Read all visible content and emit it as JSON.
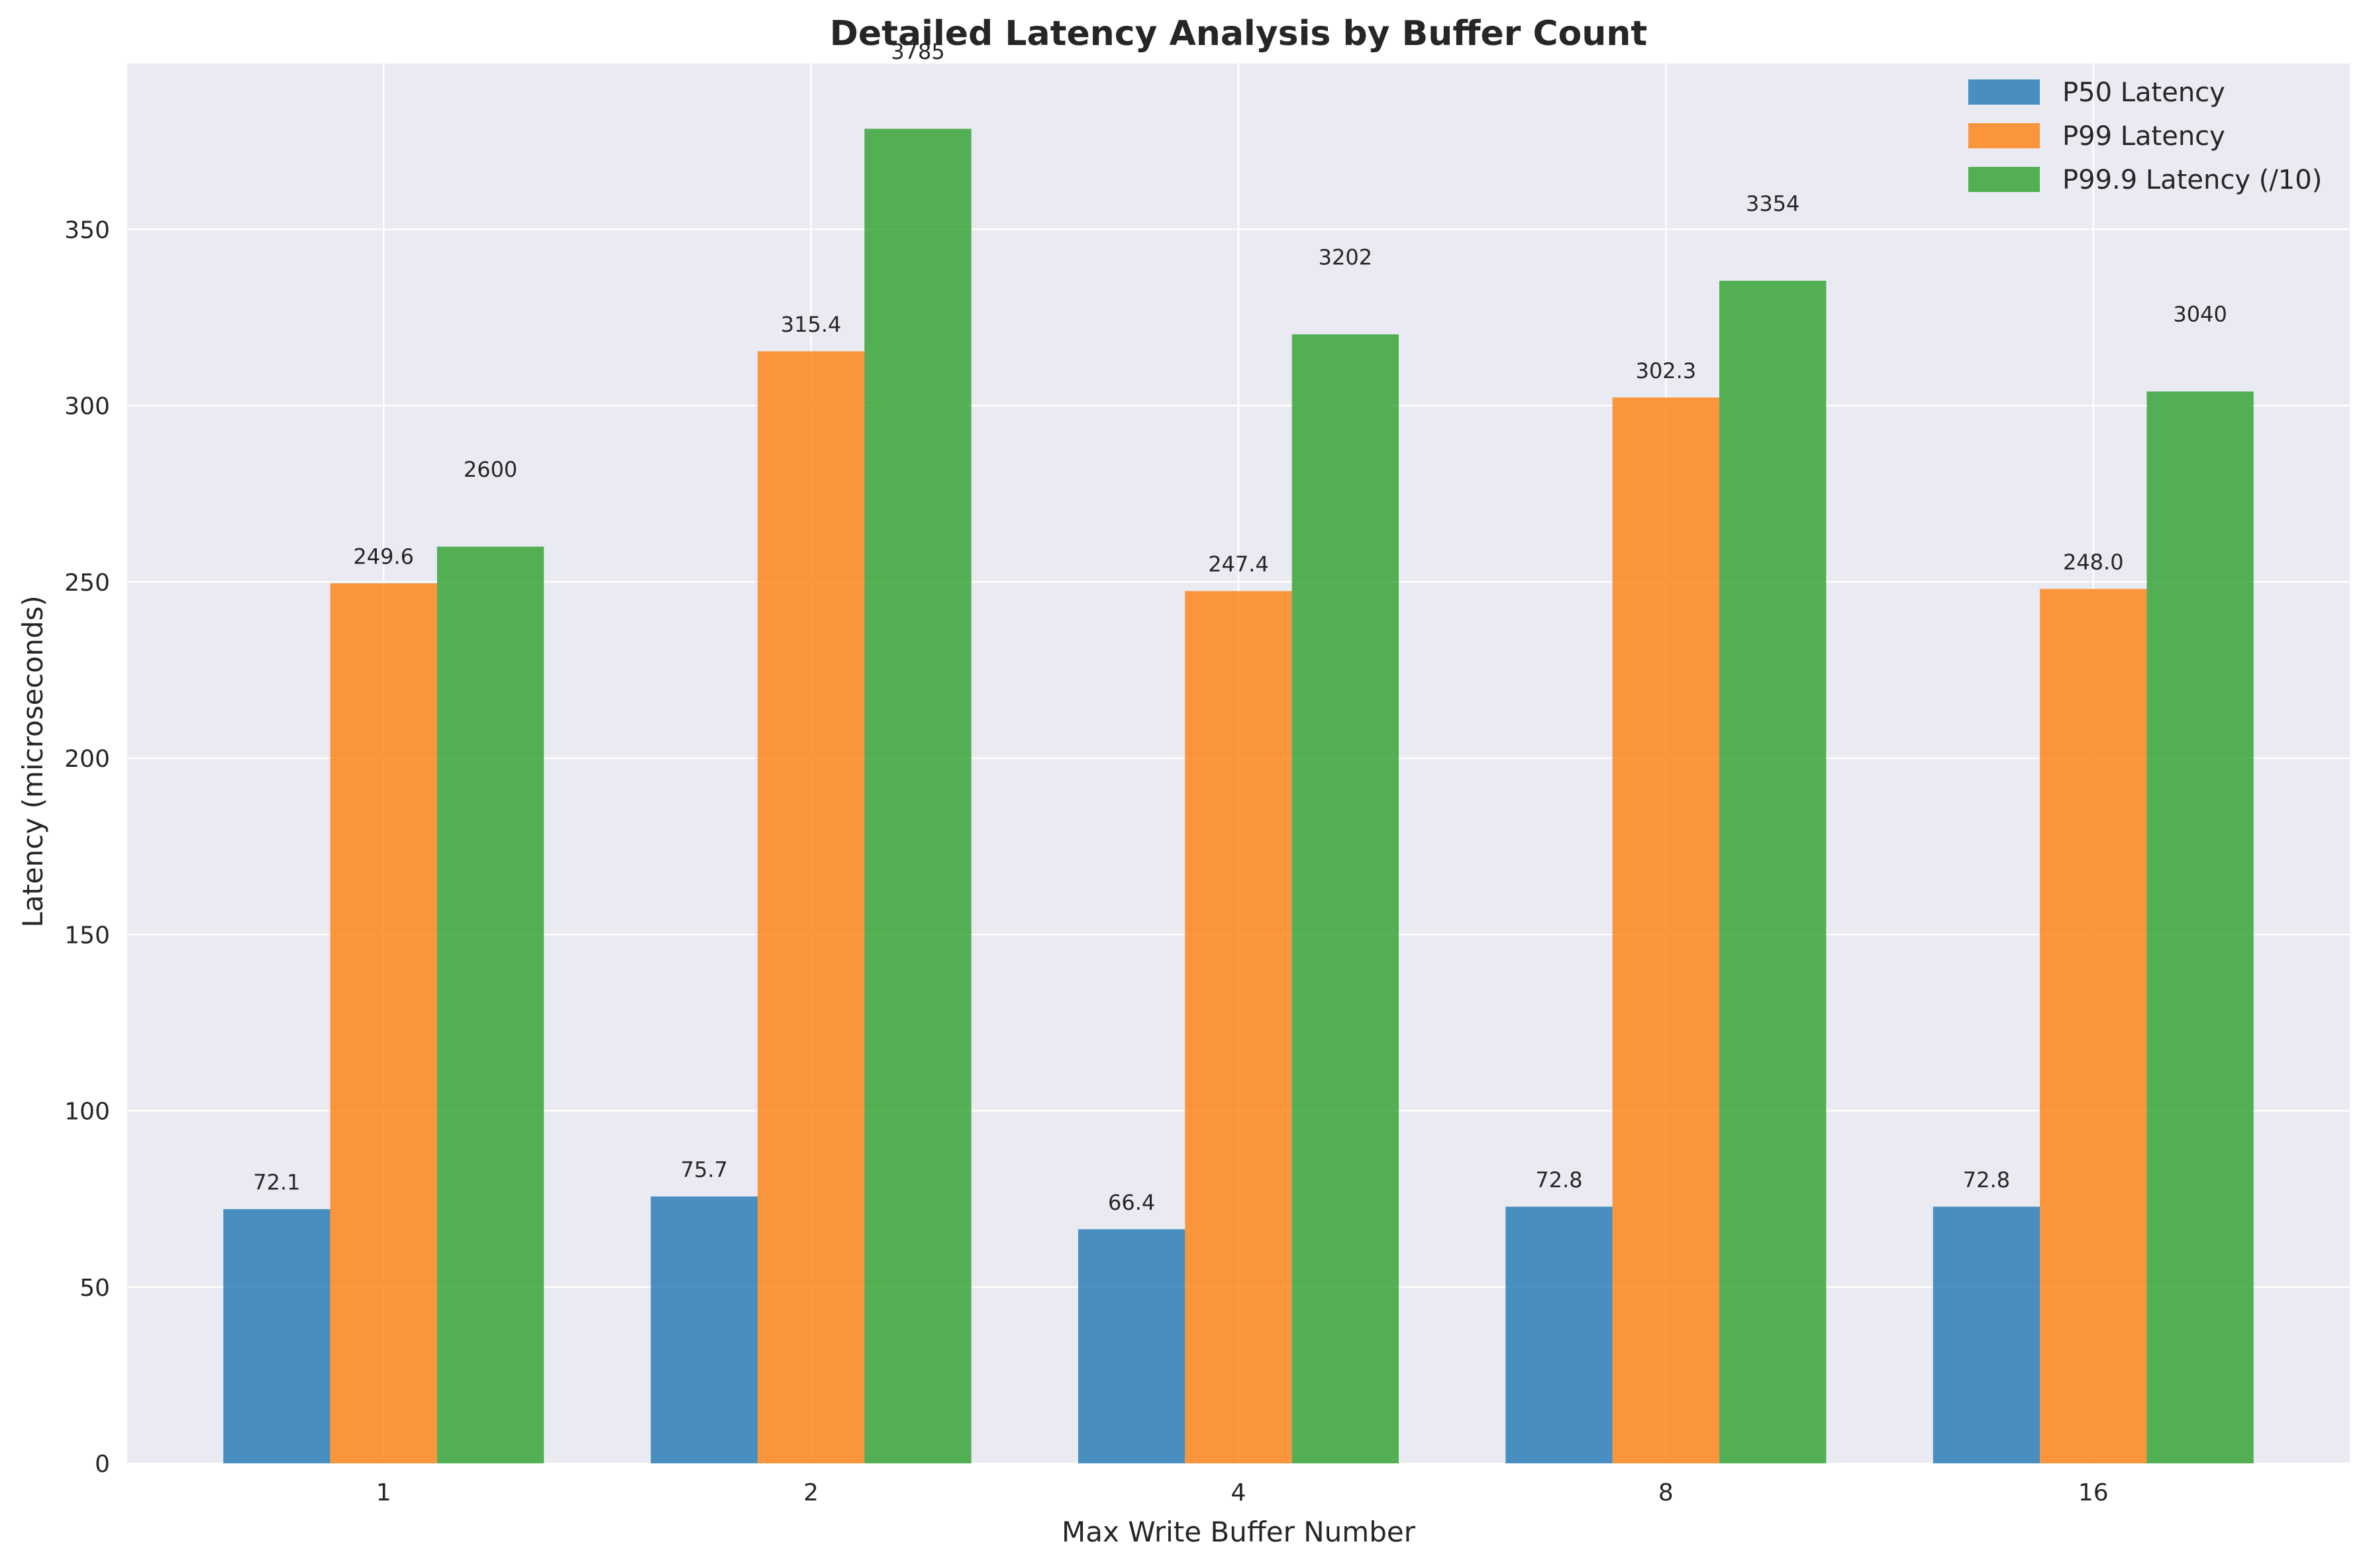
{
  "chart_data": {
    "type": "bar",
    "title": "Detailed Latency Analysis by Buffer Count",
    "xlabel": "Max Write Buffer Number",
    "ylabel": "Latency (microseconds)",
    "categories": [
      "1",
      "2",
      "4",
      "8",
      "16"
    ],
    "ylim": [
      0,
      397
    ],
    "yticks": [
      0,
      50,
      100,
      150,
      200,
      250,
      300,
      350
    ],
    "grid": true,
    "legend_position": "top-right",
    "series": [
      {
        "name": "P50 Latency",
        "color": "#1f77b4",
        "values": [
          72.1,
          75.7,
          66.4,
          72.8,
          72.8
        ],
        "labels": [
          "72.1",
          "75.7",
          "66.4",
          "72.8",
          "72.8"
        ]
      },
      {
        "name": "P99 Latency",
        "color": "#ff7f0e",
        "values": [
          249.6,
          315.4,
          247.4,
          302.3,
          248.0
        ],
        "labels": [
          "249.6",
          "315.4",
          "247.4",
          "302.3",
          "248.0"
        ]
      },
      {
        "name": "P99.9 Latency (/10)",
        "color": "#2ca02c",
        "values": [
          260.0,
          378.5,
          320.2,
          335.4,
          304.0
        ],
        "labels": [
          "2600",
          "3785",
          "3202",
          "3354",
          "3040"
        ]
      }
    ]
  }
}
